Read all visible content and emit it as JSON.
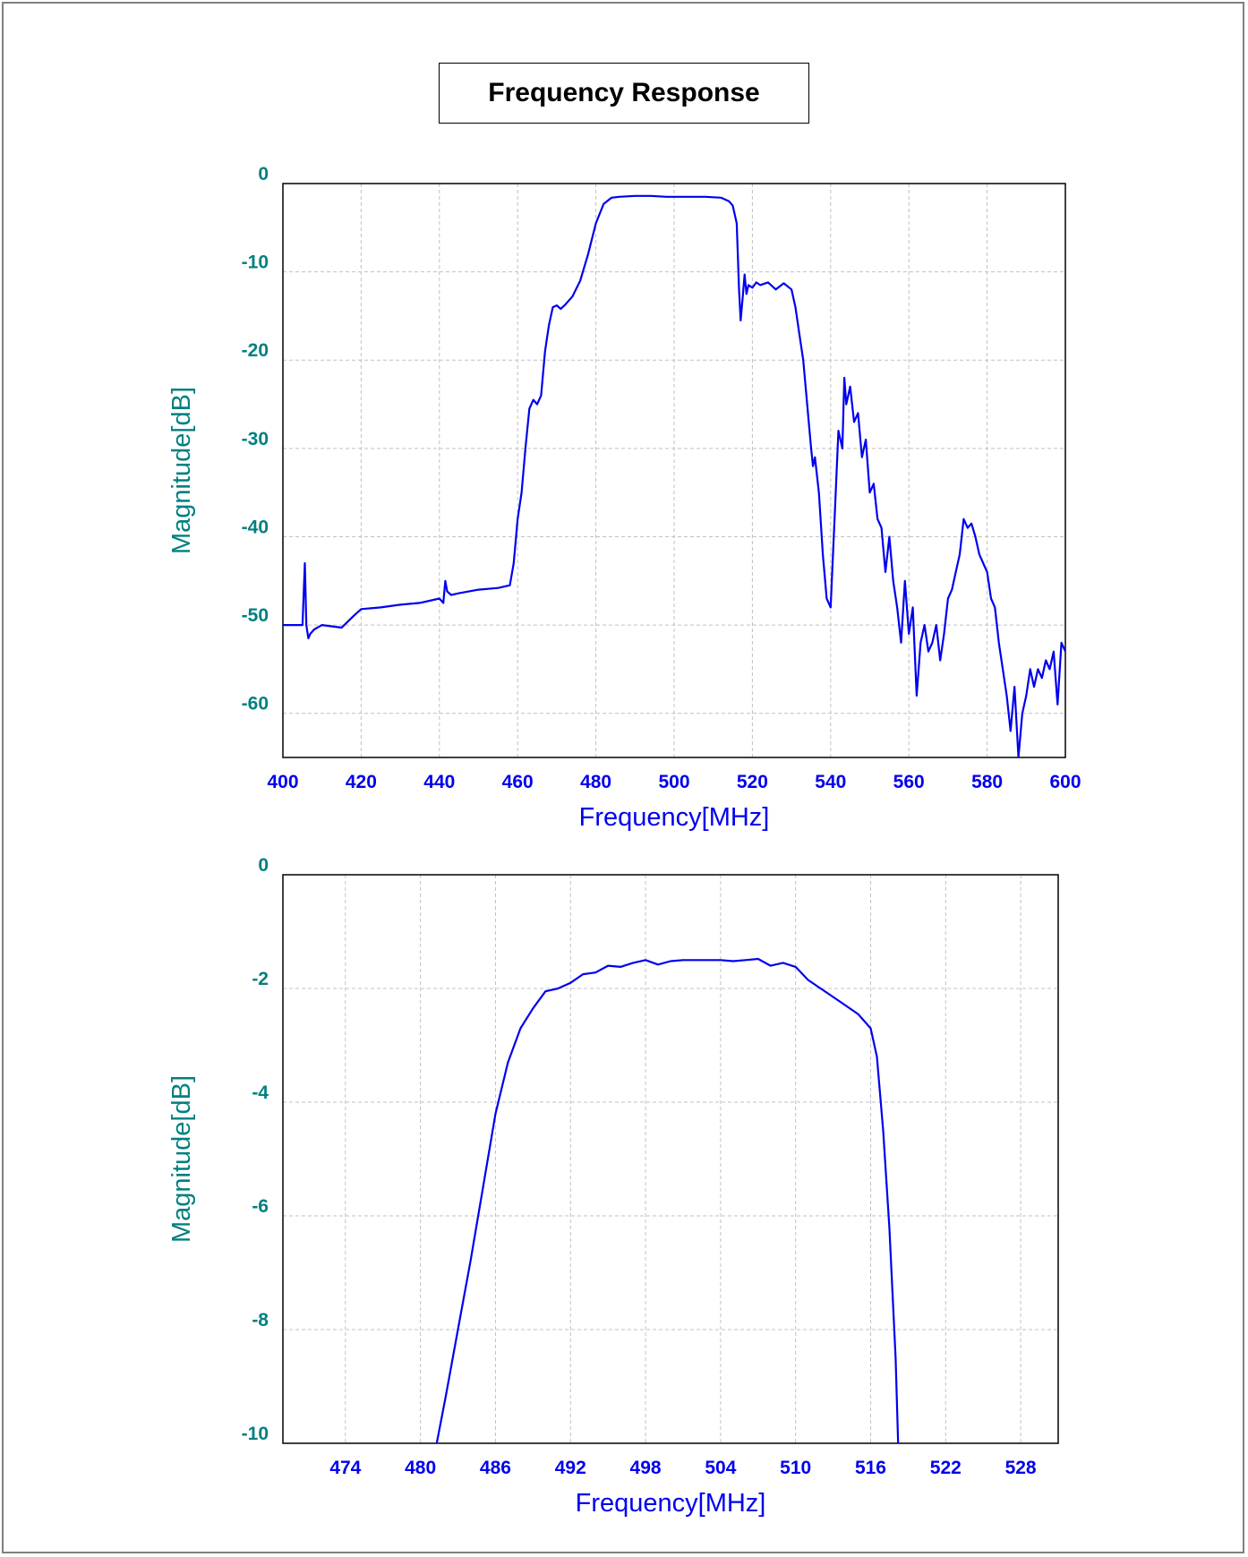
{
  "page_title": "Frequency Response",
  "colors": {
    "line": "#0000ee",
    "x_tick": "#0000ee",
    "y_tick": "#008080",
    "grid": "#c0c0c0",
    "frame": "#000000"
  },
  "chart_data": [
    {
      "type": "line",
      "xlabel": "Frequency[MHz]",
      "ylabel": "Magnitude[dB]",
      "xlim": [
        400,
        600
      ],
      "ylim": [
        -65,
        0
      ],
      "xticks": [
        400,
        420,
        440,
        460,
        480,
        500,
        520,
        540,
        560,
        580,
        600
      ],
      "yticks": [
        0,
        -10,
        -20,
        -30,
        -40,
        -50,
        -60
      ],
      "grid": true,
      "series": [
        {
          "x": [
            400,
            405,
            405.6,
            406,
            406.5,
            407,
            408,
            410,
            415,
            418,
            420,
            425,
            430,
            435,
            440,
            441,
            441.5,
            442,
            443,
            445,
            450,
            455,
            458,
            459,
            460,
            461,
            462,
            463,
            464,
            465,
            466,
            467,
            468,
            469,
            470,
            471,
            472,
            474,
            476,
            478,
            480,
            482,
            484,
            486,
            488,
            490,
            492,
            494,
            496,
            498,
            500,
            504,
            508,
            512,
            514,
            515,
            516,
            516.6,
            517,
            517.5,
            518,
            518.5,
            519,
            520,
            521,
            522,
            524,
            526,
            528,
            530,
            531,
            532,
            533,
            534,
            535,
            535.5,
            536,
            537,
            538,
            539,
            540,
            541,
            542,
            543,
            543.5,
            544,
            545,
            546,
            547,
            548,
            549,
            550,
            551,
            552,
            553,
            554,
            555,
            556,
            557,
            558,
            559,
            560,
            561,
            562,
            563,
            564,
            565,
            566,
            567,
            568,
            569,
            570,
            571,
            572,
            573,
            574,
            575,
            576,
            577,
            578,
            579,
            580,
            581,
            582,
            583,
            584,
            585,
            586,
            587,
            588,
            589,
            590,
            591,
            592,
            593,
            594,
            595,
            596,
            597,
            598,
            599,
            600
          ],
          "y": [
            -50,
            -50,
            -43,
            -50,
            -51.5,
            -51,
            -50.5,
            -50,
            -50.3,
            -49,
            -48.2,
            -48,
            -47.7,
            -47.5,
            -47,
            -47.5,
            -45,
            -46.2,
            -46.6,
            -46.4,
            -46,
            -45.8,
            -45.5,
            -43,
            -38,
            -35,
            -30,
            -25.5,
            -24.5,
            -25,
            -24,
            -19,
            -16,
            -14,
            -13.8,
            -14.2,
            -13.8,
            -12.8,
            -11,
            -8,
            -4.5,
            -2.3,
            -1.6,
            -1.5,
            -1.45,
            -1.4,
            -1.4,
            -1.4,
            -1.45,
            -1.5,
            -1.5,
            -1.5,
            -1.5,
            -1.6,
            -2,
            -2.5,
            -4.5,
            -12,
            -15.5,
            -13,
            -10.3,
            -12.5,
            -11.5,
            -11.8,
            -11.2,
            -11.5,
            -11.2,
            -12,
            -11.3,
            -12,
            -14,
            -17,
            -20,
            -25,
            -30,
            -32,
            -31,
            -35,
            -42,
            -47,
            -48,
            -38,
            -28,
            -30,
            -22,
            -25,
            -23,
            -27,
            -26,
            -31,
            -29,
            -35,
            -34,
            -38,
            -39,
            -44,
            -40,
            -45,
            -48,
            -52,
            -45,
            -51,
            -48,
            -58,
            -52,
            -50,
            -53,
            -52,
            -50,
            -54,
            -51,
            -47,
            -46,
            -44,
            -42,
            -38,
            -39,
            -38.5,
            -40,
            -42,
            -43,
            -44,
            -47,
            -48,
            -52,
            -55,
            -58,
            -62,
            -57,
            -65,
            -60,
            -58,
            -55,
            -57,
            -55,
            -56,
            -54,
            -55,
            -53,
            -59,
            -52,
            -53
          ]
        }
      ]
    },
    {
      "type": "line",
      "xlabel": "Frequency[MHz]",
      "ylabel": "Magnitude[dB]",
      "xlim": [
        469,
        531
      ],
      "ylim": [
        -10,
        0
      ],
      "xticks": [
        474,
        480,
        486,
        492,
        498,
        504,
        510,
        516,
        522,
        528
      ],
      "yticks": [
        0,
        -2,
        -4,
        -6,
        -8,
        -10
      ],
      "grid": true,
      "series": [
        {
          "x": [
            481.3,
            482,
            483,
            484,
            485,
            486,
            487,
            488,
            489,
            490,
            491,
            492,
            493,
            494,
            495,
            496,
            497,
            498,
            499,
            500,
            501,
            502,
            503,
            504,
            505,
            506,
            507,
            508,
            509,
            510,
            511,
            512,
            513,
            514,
            515,
            516,
            516.5,
            517,
            517.5,
            518,
            518.2
          ],
          "y": [
            -10,
            -9.2,
            -8.0,
            -6.8,
            -5.5,
            -4.2,
            -3.3,
            -2.7,
            -2.35,
            -2.05,
            -2.0,
            -1.9,
            -1.75,
            -1.72,
            -1.6,
            -1.62,
            -1.55,
            -1.5,
            -1.58,
            -1.52,
            -1.5,
            -1.5,
            -1.5,
            -1.5,
            -1.52,
            -1.5,
            -1.48,
            -1.6,
            -1.55,
            -1.62,
            -1.85,
            -2.0,
            -2.15,
            -2.3,
            -2.45,
            -2.7,
            -3.2,
            -4.5,
            -6.2,
            -8.5,
            -10
          ]
        }
      ]
    }
  ]
}
